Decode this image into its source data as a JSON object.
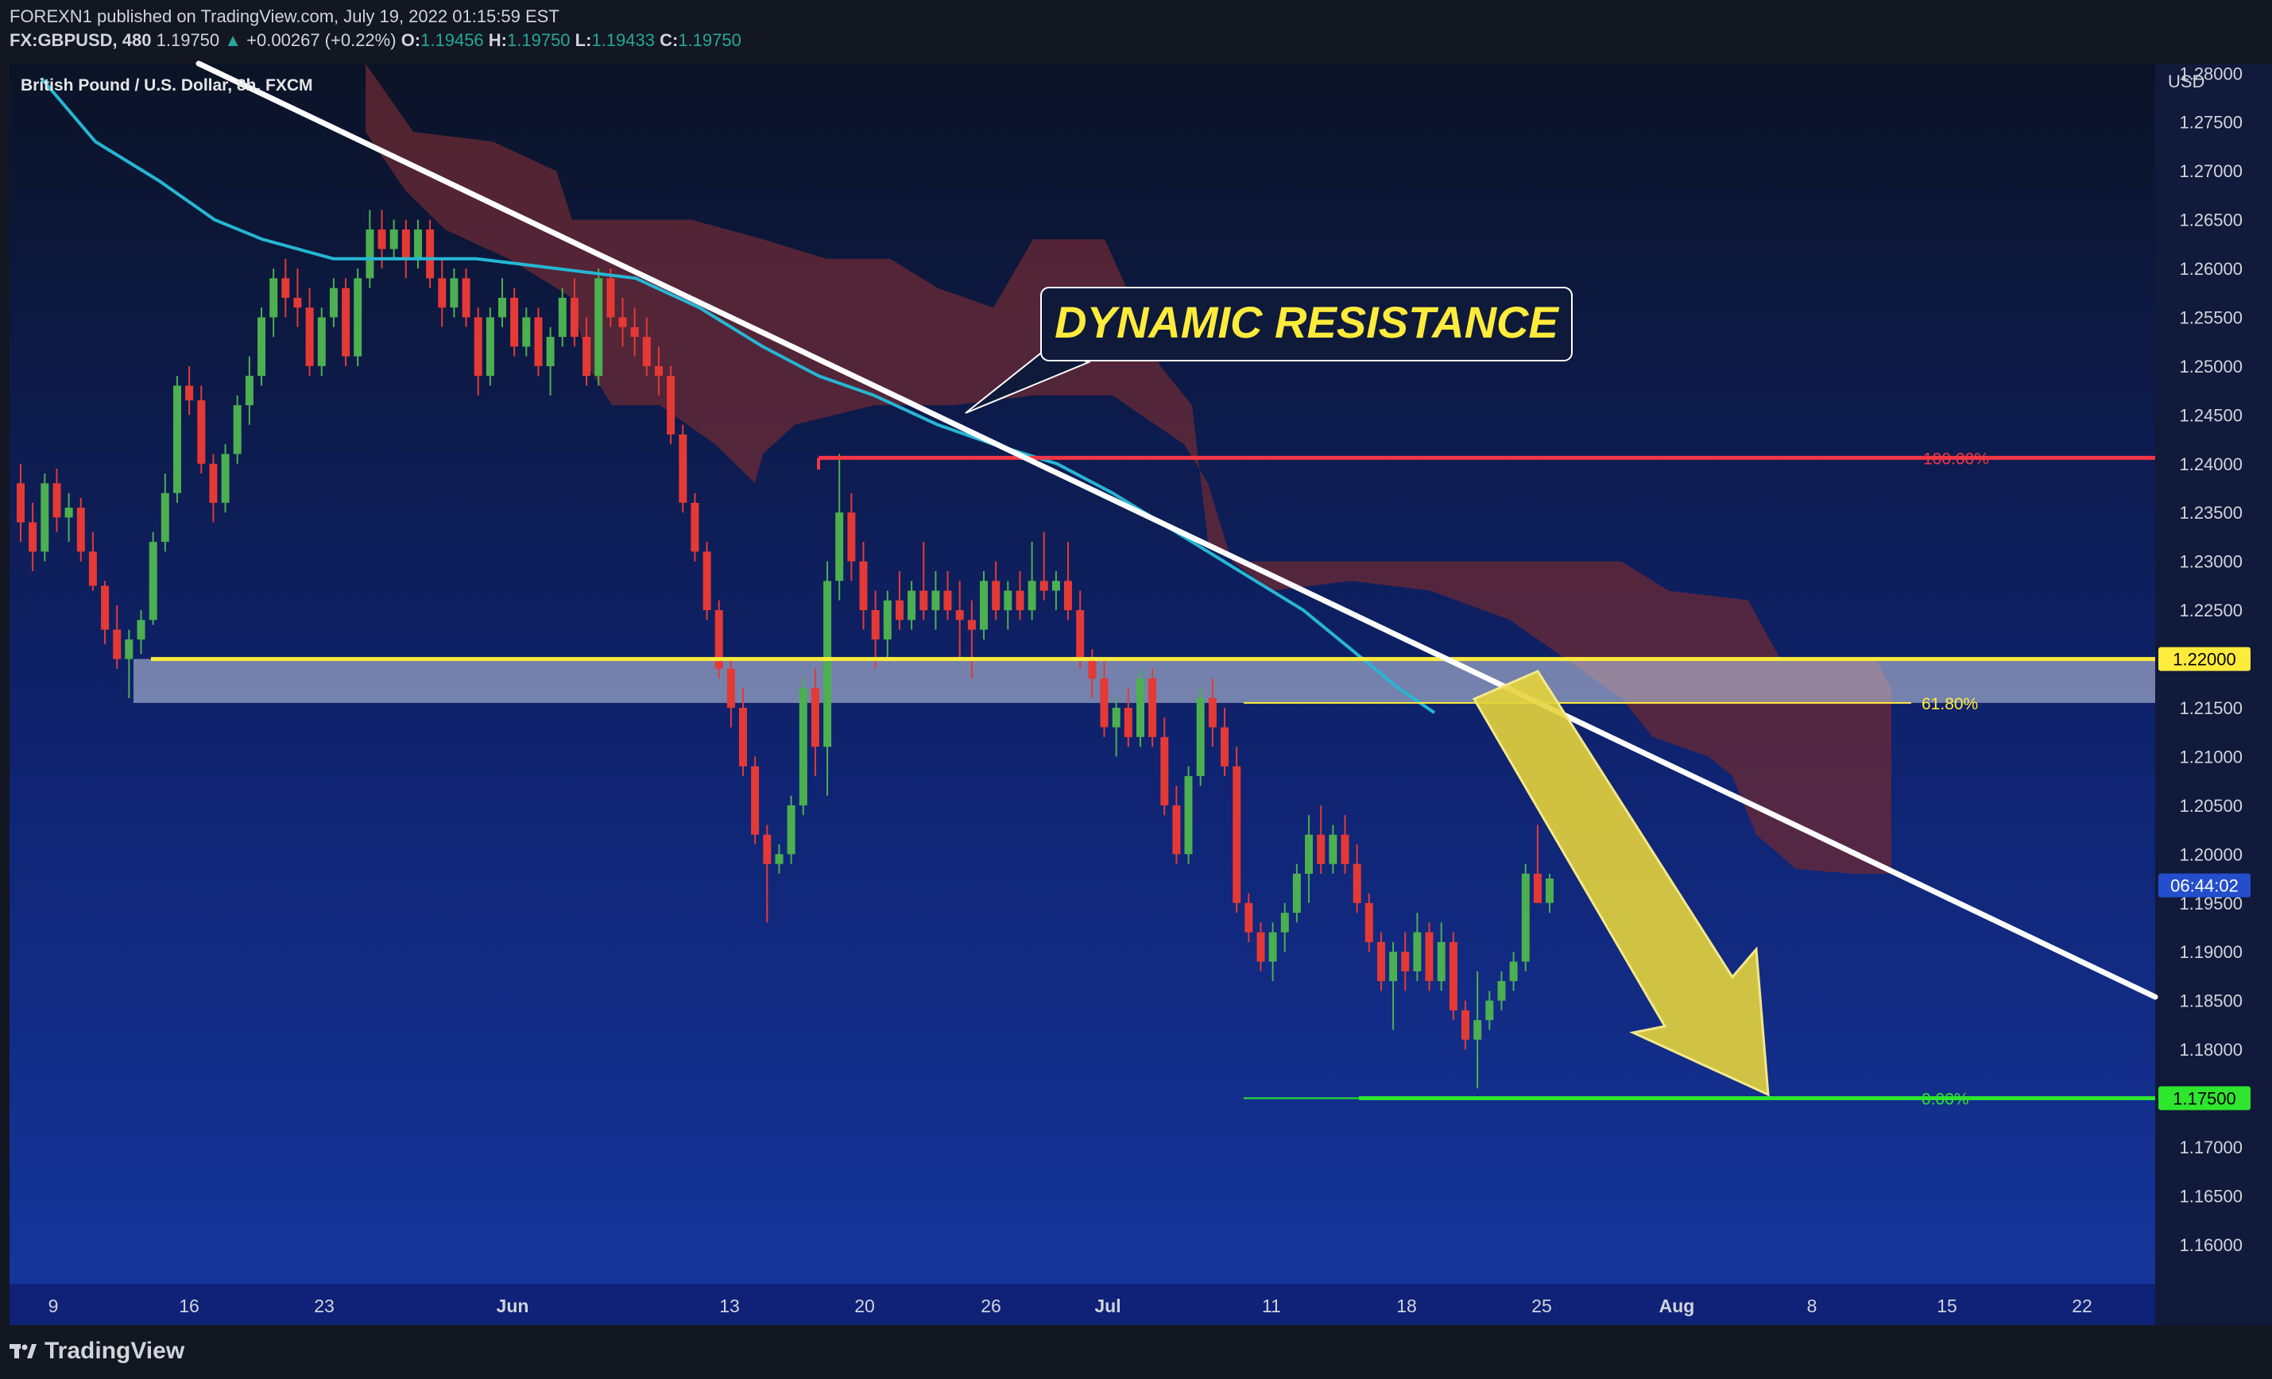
{
  "header": {
    "published_line": "FOREXN1 published on TradingView.com, July 19, 2022 01:15:59 EST",
    "symbol": "FX:GBPUSD, 480",
    "last": "1.19750",
    "change_arrow": "▲",
    "change": "+0.00267 (+0.22%)",
    "o_label": "O:",
    "o_value": "1.19456",
    "h_label": "H:",
    "h_value": "1.19750",
    "l_label": "L:",
    "l_value": "1.19433",
    "c_label": "C:",
    "c_value": "1.19750"
  },
  "instrument_label": "British Pound / U.S. Dollar, 8h, FXCM",
  "footer": {
    "brand": "TradingView",
    "logo_icon": "tradingview-logo-icon"
  },
  "colors": {
    "background_top": "#0c1426",
    "background_bottom": "#14339e",
    "bull": "#4caf50",
    "bear": "#e53935",
    "ema": "#26b6d4",
    "cloud": "#6b2a34",
    "trendline": "#ffffff",
    "support": "#ffeb3b",
    "resistance": "#f23645",
    "target": "#2ee62e",
    "arrow": "#e6d33c"
  },
  "chart_data": {
    "type": "candlestick",
    "y_unit": "USD",
    "y_range": [
      1.156,
      1.281
    ],
    "y_ticks": [
      "1.28000",
      "1.27500",
      "1.27000",
      "1.26500",
      "1.26000",
      "1.25500",
      "1.25000",
      "1.24500",
      "1.24000",
      "1.23500",
      "1.23000",
      "1.22500",
      "1.22000",
      "1.21500",
      "1.21000",
      "1.20500",
      "1.20000",
      "1.19500",
      "1.19000",
      "1.18500",
      "1.18000",
      "1.17500",
      "1.17000",
      "1.16500",
      "1.16000"
    ],
    "x_ticks": [
      "9",
      "16",
      "23",
      "Jun",
      "13",
      "20",
      "26",
      "Jul",
      "11",
      "18",
      "25",
      "Aug",
      "8",
      "15",
      "22"
    ],
    "price_badges": [
      {
        "text": "1.22000",
        "value": 1.22,
        "kind": "support"
      },
      {
        "text": "06:44:02",
        "value": 1.1968,
        "kind": "countdown"
      },
      {
        "text": "1.17500",
        "value": 1.175,
        "kind": "target"
      }
    ],
    "fib_levels": [
      {
        "label": "100.00%",
        "value": 1.2406
      },
      {
        "label": "61.80%",
        "value": 1.2155
      },
      {
        "label": "0.00%",
        "value": 1.175
      }
    ],
    "horizontal_lines": [
      {
        "name": "support",
        "value": 1.22
      },
      {
        "name": "resistance",
        "value": 1.2406
      },
      {
        "name": "target",
        "value": 1.175
      }
    ],
    "support_zone": [
      1.2155,
      1.22
    ],
    "annotation": "DYNAMIC RESISTANCE",
    "candles_ohlc": [
      [
        1.238,
        1.24,
        1.232,
        1.234
      ],
      [
        1.234,
        1.236,
        1.229,
        1.231
      ],
      [
        1.231,
        1.239,
        1.23,
        1.238
      ],
      [
        1.238,
        1.2395,
        1.233,
        1.2345
      ],
      [
        1.2345,
        1.237,
        1.232,
        1.2355
      ],
      [
        1.2355,
        1.2365,
        1.23,
        1.231
      ],
      [
        1.231,
        1.233,
        1.227,
        1.2275
      ],
      [
        1.2275,
        1.228,
        1.2215,
        1.223
      ],
      [
        1.223,
        1.2255,
        1.219,
        1.22
      ],
      [
        1.22,
        1.223,
        1.216,
        1.222
      ],
      [
        1.222,
        1.225,
        1.2205,
        1.224
      ],
      [
        1.224,
        1.233,
        1.2235,
        1.232
      ],
      [
        1.232,
        1.239,
        1.231,
        1.237
      ],
      [
        1.237,
        1.249,
        1.236,
        1.248
      ],
      [
        1.248,
        1.25,
        1.245,
        1.2465
      ],
      [
        1.2465,
        1.248,
        1.239,
        1.24
      ],
      [
        1.24,
        1.241,
        1.234,
        1.236
      ],
      [
        1.236,
        1.242,
        1.235,
        1.241
      ],
      [
        1.241,
        1.247,
        1.24,
        1.246
      ],
      [
        1.246,
        1.251,
        1.244,
        1.249
      ],
      [
        1.249,
        1.256,
        1.248,
        1.255
      ],
      [
        1.255,
        1.26,
        1.253,
        1.259
      ],
      [
        1.259,
        1.261,
        1.255,
        1.257
      ],
      [
        1.257,
        1.26,
        1.254,
        1.256
      ],
      [
        1.256,
        1.258,
        1.249,
        1.25
      ],
      [
        1.25,
        1.256,
        1.249,
        1.255
      ],
      [
        1.255,
        1.259,
        1.254,
        1.258
      ],
      [
        1.258,
        1.259,
        1.25,
        1.251
      ],
      [
        1.251,
        1.26,
        1.25,
        1.259
      ],
      [
        1.259,
        1.266,
        1.258,
        1.264
      ],
      [
        1.264,
        1.266,
        1.26,
        1.262
      ],
      [
        1.262,
        1.265,
        1.261,
        1.264
      ],
      [
        1.264,
        1.265,
        1.259,
        1.261
      ],
      [
        1.261,
        1.265,
        1.26,
        1.264
      ],
      [
        1.264,
        1.265,
        1.258,
        1.259
      ],
      [
        1.259,
        1.261,
        1.254,
        1.256
      ],
      [
        1.256,
        1.26,
        1.255,
        1.259
      ],
      [
        1.259,
        1.26,
        1.254,
        1.255
      ],
      [
        1.255,
        1.256,
        1.247,
        1.249
      ],
      [
        1.249,
        1.256,
        1.248,
        1.255
      ],
      [
        1.255,
        1.259,
        1.254,
        1.257
      ],
      [
        1.257,
        1.258,
        1.251,
        1.252
      ],
      [
        1.252,
        1.256,
        1.251,
        1.255
      ],
      [
        1.255,
        1.256,
        1.249,
        1.25
      ],
      [
        1.25,
        1.254,
        1.247,
        1.253
      ],
      [
        1.253,
        1.258,
        1.252,
        1.257
      ],
      [
        1.257,
        1.259,
        1.252,
        1.253
      ],
      [
        1.253,
        1.255,
        1.248,
        1.249
      ],
      [
        1.249,
        1.26,
        1.248,
        1.259
      ],
      [
        1.259,
        1.26,
        1.254,
        1.255
      ],
      [
        1.255,
        1.257,
        1.252,
        1.254
      ],
      [
        1.254,
        1.256,
        1.251,
        1.253
      ],
      [
        1.253,
        1.255,
        1.249,
        1.25
      ],
      [
        1.25,
        1.252,
        1.247,
        1.249
      ],
      [
        1.249,
        1.25,
        1.242,
        1.243
      ],
      [
        1.243,
        1.244,
        1.235,
        1.236
      ],
      [
        1.236,
        1.237,
        1.23,
        1.231
      ],
      [
        1.231,
        1.232,
        1.224,
        1.225
      ],
      [
        1.225,
        1.226,
        1.218,
        1.219
      ],
      [
        1.219,
        1.22,
        1.213,
        1.215
      ],
      [
        1.215,
        1.217,
        1.208,
        1.209
      ],
      [
        1.209,
        1.21,
        1.201,
        1.202
      ],
      [
        1.202,
        1.203,
        1.193,
        1.199
      ],
      [
        1.199,
        1.201,
        1.198,
        1.2
      ],
      [
        1.2,
        1.206,
        1.199,
        1.205
      ],
      [
        1.205,
        1.218,
        1.204,
        1.217
      ],
      [
        1.217,
        1.219,
        1.208,
        1.211
      ],
      [
        1.211,
        1.23,
        1.206,
        1.228
      ],
      [
        1.228,
        1.241,
        1.226,
        1.235
      ],
      [
        1.235,
        1.237,
        1.228,
        1.23
      ],
      [
        1.23,
        1.232,
        1.223,
        1.225
      ],
      [
        1.225,
        1.227,
        1.219,
        1.222
      ],
      [
        1.222,
        1.227,
        1.22,
        1.226
      ],
      [
        1.226,
        1.229,
        1.223,
        1.224
      ],
      [
        1.224,
        1.228,
        1.223,
        1.227
      ],
      [
        1.227,
        1.232,
        1.224,
        1.225
      ],
      [
        1.225,
        1.229,
        1.223,
        1.227
      ],
      [
        1.227,
        1.229,
        1.224,
        1.225
      ],
      [
        1.225,
        1.228,
        1.22,
        1.224
      ],
      [
        1.224,
        1.226,
        1.218,
        1.223
      ],
      [
        1.223,
        1.229,
        1.222,
        1.228
      ],
      [
        1.228,
        1.23,
        1.224,
        1.225
      ],
      [
        1.225,
        1.228,
        1.223,
        1.227
      ],
      [
        1.227,
        1.229,
        1.224,
        1.225
      ],
      [
        1.225,
        1.232,
        1.224,
        1.228
      ],
      [
        1.228,
        1.233,
        1.226,
        1.227
      ],
      [
        1.227,
        1.229,
        1.225,
        1.228
      ],
      [
        1.228,
        1.232,
        1.224,
        1.225
      ],
      [
        1.225,
        1.227,
        1.219,
        1.22
      ],
      [
        1.22,
        1.221,
        1.216,
        1.218
      ],
      [
        1.218,
        1.22,
        1.212,
        1.213
      ],
      [
        1.213,
        1.216,
        1.21,
        1.215
      ],
      [
        1.215,
        1.217,
        1.211,
        1.212
      ],
      [
        1.212,
        1.219,
        1.211,
        1.218
      ],
      [
        1.218,
        1.219,
        1.211,
        1.212
      ],
      [
        1.212,
        1.214,
        1.204,
        1.205
      ],
      [
        1.205,
        1.207,
        1.199,
        1.2
      ],
      [
        1.2,
        1.209,
        1.199,
        1.208
      ],
      [
        1.208,
        1.217,
        1.207,
        1.216
      ],
      [
        1.216,
        1.218,
        1.211,
        1.213
      ],
      [
        1.213,
        1.215,
        1.208,
        1.209
      ],
      [
        1.209,
        1.211,
        1.194,
        1.195
      ],
      [
        1.195,
        1.196,
        1.191,
        1.192
      ],
      [
        1.192,
        1.193,
        1.188,
        1.189
      ],
      [
        1.189,
        1.193,
        1.187,
        1.192
      ],
      [
        1.192,
        1.195,
        1.19,
        1.194
      ],
      [
        1.194,
        1.199,
        1.193,
        1.198
      ],
      [
        1.198,
        1.204,
        1.195,
        1.202
      ],
      [
        1.202,
        1.205,
        1.198,
        1.199
      ],
      [
        1.199,
        1.203,
        1.198,
        1.202
      ],
      [
        1.202,
        1.204,
        1.198,
        1.199
      ],
      [
        1.199,
        1.201,
        1.194,
        1.195
      ],
      [
        1.195,
        1.196,
        1.19,
        1.191
      ],
      [
        1.191,
        1.192,
        1.186,
        1.187
      ],
      [
        1.187,
        1.191,
        1.182,
        1.19
      ],
      [
        1.19,
        1.192,
        1.186,
        1.188
      ],
      [
        1.188,
        1.194,
        1.187,
        1.192
      ],
      [
        1.192,
        1.193,
        1.186,
        1.187
      ],
      [
        1.187,
        1.193,
        1.186,
        1.191
      ],
      [
        1.191,
        1.192,
        1.183,
        1.184
      ],
      [
        1.184,
        1.185,
        1.18,
        1.181
      ],
      [
        1.181,
        1.188,
        1.176,
        1.183
      ],
      [
        1.183,
        1.186,
        1.182,
        1.185
      ],
      [
        1.185,
        1.188,
        1.184,
        1.187
      ],
      [
        1.187,
        1.19,
        1.186,
        1.189
      ],
      [
        1.189,
        1.199,
        1.188,
        1.198
      ],
      [
        1.198,
        1.203,
        1.195,
        1.195
      ],
      [
        1.195,
        1.198,
        1.194,
        1.1975
      ]
    ]
  }
}
